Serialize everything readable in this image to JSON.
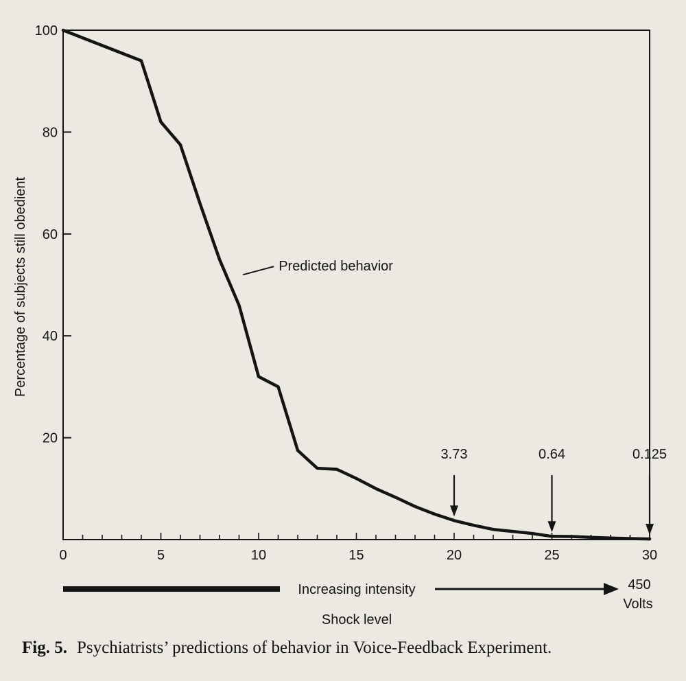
{
  "chart_data": {
    "type": "line",
    "title": "",
    "ylabel": "Percentage of subjects still obedient",
    "xlabel": "Shock level",
    "xlim": [
      0,
      30
    ],
    "ylim": [
      0,
      100
    ],
    "x_ticks": [
      0,
      5,
      10,
      15,
      20,
      25,
      30
    ],
    "y_ticks": [
      20,
      40,
      60,
      80,
      100
    ],
    "x_tick_labels": [
      "0",
      "5",
      "10",
      "15",
      "20",
      "25",
      "30"
    ],
    "y_tick_labels": [
      "20",
      "40",
      "60",
      "80",
      "100"
    ],
    "grid": false,
    "legend": "none",
    "series": [
      {
        "name": "Predicted behavior",
        "x": [
          0,
          4,
          5,
          6,
          7,
          8,
          9,
          10,
          11,
          12,
          13,
          14,
          15,
          16,
          17,
          18,
          19,
          20,
          21,
          22,
          23,
          24,
          25,
          26,
          27,
          28,
          29,
          30
        ],
        "y": [
          100,
          94,
          82,
          77.5,
          66,
          55,
          46,
          32,
          30,
          17.5,
          14,
          13.8,
          12,
          10,
          8.3,
          6.5,
          5,
          3.73,
          2.8,
          2,
          1.6,
          1.2,
          0.64,
          0.6,
          0.45,
          0.3,
          0.2,
          0.125
        ]
      }
    ],
    "annotations": [
      {
        "text": "3.73",
        "x": 20,
        "y": 3.73
      },
      {
        "text": "0.64",
        "x": 25,
        "y": 0.64
      },
      {
        "text": "0.125",
        "x": 30,
        "y": 0.125
      }
    ],
    "series_label": "Predicted behavior",
    "intensity_label": "Increasing intensity",
    "end_value": "450",
    "end_unit": "Volts"
  },
  "caption": {
    "figure_number": "Fig. 5.",
    "text": "Psychiatrists’ predictions of behavior in Voice-Feedback Experiment."
  },
  "colors": {
    "ink": "#141414",
    "paper": "#ece9e2"
  }
}
